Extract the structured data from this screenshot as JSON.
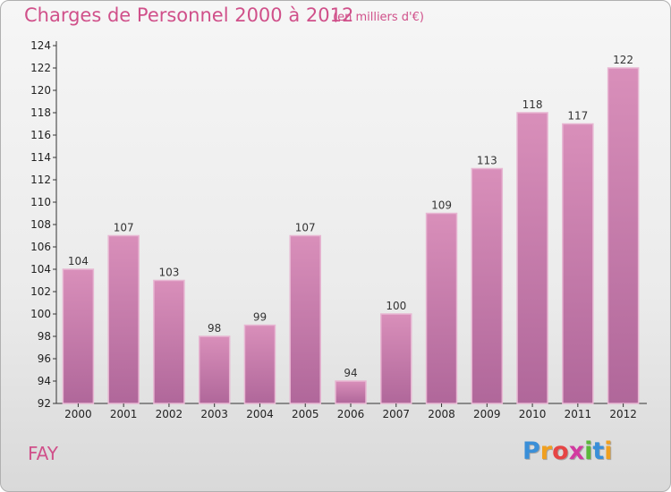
{
  "chart_data": {
    "type": "bar",
    "title": "Charges de Personnel 2000 à 2012",
    "subtitle": "(en milliers d'€)",
    "categories": [
      "2000",
      "2001",
      "2002",
      "2003",
      "2004",
      "2005",
      "2006",
      "2007",
      "2008",
      "2009",
      "2010",
      "2011",
      "2012"
    ],
    "values": [
      104,
      107,
      103,
      98,
      99,
      107,
      94,
      100,
      109,
      113,
      118,
      117,
      122
    ],
    "ylim": [
      92,
      124
    ],
    "yticks": [
      92,
      94,
      96,
      98,
      100,
      102,
      104,
      106,
      108,
      110,
      112,
      114,
      116,
      118,
      120,
      122,
      124
    ],
    "xlabel": "",
    "ylabel": "",
    "grid": false,
    "bar_color": "#d98fba",
    "bar_color_dark": "#b0679a"
  },
  "commune": "FAY",
  "logo": {
    "letters": [
      "P",
      "r",
      "o",
      "x",
      "i",
      "t",
      "i"
    ],
    "colors": [
      "#3a8fd8",
      "#f0a020",
      "#e64545",
      "#d23aa0",
      "#5bb83a",
      "#3a8fd8",
      "#f0a020"
    ]
  }
}
